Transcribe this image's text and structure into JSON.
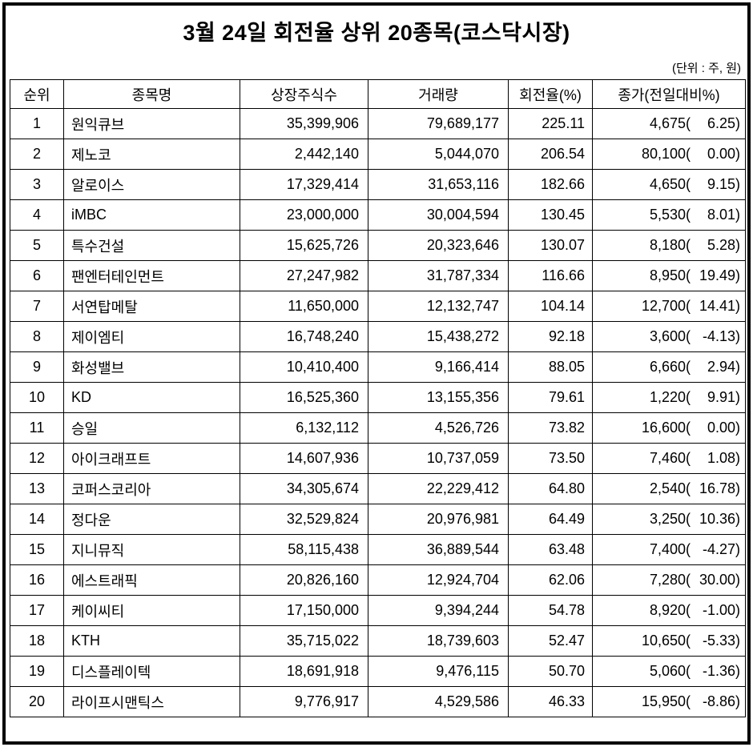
{
  "title": "3월 24일 회전율 상위 20종목(코스닥시장)",
  "unit_note": "(단위 : 주, 원)",
  "colors": {
    "border": "#000000",
    "background": "#ffffff",
    "text": "#000000"
  },
  "table": {
    "headers": [
      "순위",
      "종목명",
      "상장주식수",
      "거래량",
      "회전율(%)",
      "종가(전일대비%)"
    ],
    "rows": [
      {
        "rank": "1",
        "name": "원익큐브",
        "shares": "35,399,906",
        "volume": "79,689,177",
        "turnover": "225.11",
        "price": "4,675(",
        "change": "6.25)"
      },
      {
        "rank": "2",
        "name": "제노코",
        "shares": "2,442,140",
        "volume": "5,044,070",
        "turnover": "206.54",
        "price": "80,100(",
        "change": "0.00)"
      },
      {
        "rank": "3",
        "name": "알로이스",
        "shares": "17,329,414",
        "volume": "31,653,116",
        "turnover": "182.66",
        "price": "4,650(",
        "change": "9.15)"
      },
      {
        "rank": "4",
        "name": "iMBC",
        "shares": "23,000,000",
        "volume": "30,004,594",
        "turnover": "130.45",
        "price": "5,530(",
        "change": "8.01)"
      },
      {
        "rank": "5",
        "name": "특수건설",
        "shares": "15,625,726",
        "volume": "20,323,646",
        "turnover": "130.07",
        "price": "8,180(",
        "change": "5.28)"
      },
      {
        "rank": "6",
        "name": "팬엔터테인먼트",
        "shares": "27,247,982",
        "volume": "31,787,334",
        "turnover": "116.66",
        "price": "8,950(",
        "change": "19.49)"
      },
      {
        "rank": "7",
        "name": "서연탑메탈",
        "shares": "11,650,000",
        "volume": "12,132,747",
        "turnover": "104.14",
        "price": "12,700(",
        "change": "14.41)"
      },
      {
        "rank": "8",
        "name": "제이엠티",
        "shares": "16,748,240",
        "volume": "15,438,272",
        "turnover": "92.18",
        "price": "3,600(",
        "change": "-4.13)"
      },
      {
        "rank": "9",
        "name": "화성밸브",
        "shares": "10,410,400",
        "volume": "9,166,414",
        "turnover": "88.05",
        "price": "6,660(",
        "change": "2.94)"
      },
      {
        "rank": "10",
        "name": "KD",
        "shares": "16,525,360",
        "volume": "13,155,356",
        "turnover": "79.61",
        "price": "1,220(",
        "change": "9.91)"
      },
      {
        "rank": "11",
        "name": "승일",
        "shares": "6,132,112",
        "volume": "4,526,726",
        "turnover": "73.82",
        "price": "16,600(",
        "change": "0.00)"
      },
      {
        "rank": "12",
        "name": "아이크래프트",
        "shares": "14,607,936",
        "volume": "10,737,059",
        "turnover": "73.50",
        "price": "7,460(",
        "change": "1.08)"
      },
      {
        "rank": "13",
        "name": "코퍼스코리아",
        "shares": "34,305,674",
        "volume": "22,229,412",
        "turnover": "64.80",
        "price": "2,540(",
        "change": "16.78)"
      },
      {
        "rank": "14",
        "name": "정다운",
        "shares": "32,529,824",
        "volume": "20,976,981",
        "turnover": "64.49",
        "price": "3,250(",
        "change": "10.36)"
      },
      {
        "rank": "15",
        "name": "지니뮤직",
        "shares": "58,115,438",
        "volume": "36,889,544",
        "turnover": "63.48",
        "price": "7,400(",
        "change": "-4.27)"
      },
      {
        "rank": "16",
        "name": "에스트래픽",
        "shares": "20,826,160",
        "volume": "12,924,704",
        "turnover": "62.06",
        "price": "7,280(",
        "change": "30.00)"
      },
      {
        "rank": "17",
        "name": "케이씨티",
        "shares": "17,150,000",
        "volume": "9,394,244",
        "turnover": "54.78",
        "price": "8,920(",
        "change": "-1.00)"
      },
      {
        "rank": "18",
        "name": "KTH",
        "shares": "35,715,022",
        "volume": "18,739,603",
        "turnover": "52.47",
        "price": "10,650(",
        "change": "-5.33)"
      },
      {
        "rank": "19",
        "name": "디스플레이텍",
        "shares": "18,691,918",
        "volume": "9,476,115",
        "turnover": "50.70",
        "price": "5,060(",
        "change": "-1.36)"
      },
      {
        "rank": "20",
        "name": "라이프시맨틱스",
        "shares": "9,776,917",
        "volume": "4,529,586",
        "turnover": "46.33",
        "price": "15,950(",
        "change": "-8.86)"
      }
    ]
  }
}
